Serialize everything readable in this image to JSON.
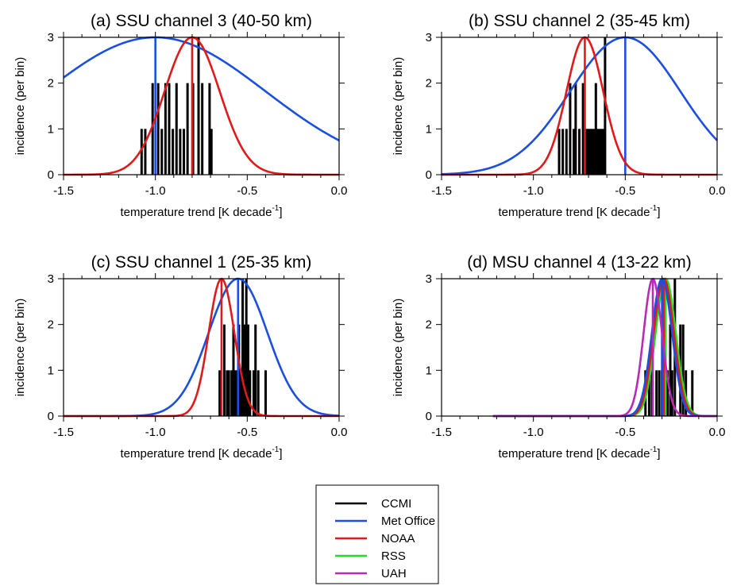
{
  "figure": {
    "legend_entries": [
      {
        "label": "CCMI",
        "color": "#000000"
      },
      {
        "label": "Met Office",
        "color": "#1a4fe0"
      },
      {
        "label": "NOAA",
        "color": "#e01a1a"
      },
      {
        "label": "RSS",
        "color": "#22dd22"
      },
      {
        "label": "UAH",
        "color": "#b82bb8"
      }
    ]
  },
  "chart_data": [
    {
      "type": "bar",
      "title": "(a) SSU channel 3 (40-50 km)",
      "xlabel": "temperature trend [K decade",
      "xlabel_sup": "-1",
      "xlabel_end": "]",
      "ylabel": "incidence (per bin)",
      "xlim": [
        -1.5,
        0.0
      ],
      "ylim": [
        0,
        3
      ],
      "xticks": [
        "-1.5",
        "-1.0",
        "-0.5",
        "0.0"
      ],
      "yticks": [
        "0",
        "1",
        "2",
        "3"
      ],
      "histogram": {
        "series": "CCMI",
        "color": "#000000",
        "bins": [
          {
            "x": -1.075,
            "count": 1
          },
          {
            "x": -1.055,
            "count": 1
          },
          {
            "x": -1.015,
            "count": 2
          },
          {
            "x": -0.985,
            "count": 2
          },
          {
            "x": -0.965,
            "count": 1
          },
          {
            "x": -0.945,
            "count": 2
          },
          {
            "x": -0.925,
            "count": 2
          },
          {
            "x": -0.905,
            "count": 1
          },
          {
            "x": -0.885,
            "count": 2
          },
          {
            "x": -0.865,
            "count": 1
          },
          {
            "x": -0.845,
            "count": 1
          },
          {
            "x": -0.825,
            "count": 2
          },
          {
            "x": -0.795,
            "count": 2
          },
          {
            "x": -0.765,
            "count": 3
          },
          {
            "x": -0.745,
            "count": 2
          },
          {
            "x": -0.705,
            "count": 2
          },
          {
            "x": -0.695,
            "count": 1
          }
        ]
      },
      "series": [
        {
          "name": "Met Office",
          "color": "#1a4fe0",
          "mean": -1.0,
          "sd": 0.6,
          "peak": 3,
          "x_start": -1.5
        },
        {
          "name": "NOAA",
          "color": "#e01a1a",
          "mean": -0.8,
          "sd": 0.15,
          "peak": 3,
          "x_start": -1.5
        }
      ]
    },
    {
      "type": "bar",
      "title": "(b) SSU channel 2 (35-45 km)",
      "xlabel": "temperature trend [K decade",
      "xlabel_sup": "-1",
      "xlabel_end": "]",
      "ylabel": "incidence (per bin)",
      "xlim": [
        -1.5,
        0.0
      ],
      "ylim": [
        0,
        3
      ],
      "xticks": [
        "-1.5",
        "-1.0",
        "-0.5",
        "0.0"
      ],
      "yticks": [
        "0",
        "1",
        "2",
        "3"
      ],
      "histogram": {
        "series": "CCMI",
        "color": "#000000",
        "bins": [
          {
            "x": -0.86,
            "count": 1
          },
          {
            "x": -0.84,
            "count": 1
          },
          {
            "x": -0.82,
            "count": 1
          },
          {
            "x": -0.8,
            "count": 2
          },
          {
            "x": -0.78,
            "count": 1
          },
          {
            "x": -0.77,
            "count": 2
          },
          {
            "x": -0.75,
            "count": 1
          },
          {
            "x": -0.73,
            "count": 2
          },
          {
            "x": -0.71,
            "count": 1
          },
          {
            "x": -0.7,
            "count": 1
          },
          {
            "x": -0.69,
            "count": 1
          },
          {
            "x": -0.68,
            "count": 1
          },
          {
            "x": -0.67,
            "count": 1
          },
          {
            "x": -0.66,
            "count": 2
          },
          {
            "x": -0.65,
            "count": 1
          },
          {
            "x": -0.64,
            "count": 1
          },
          {
            "x": -0.63,
            "count": 1
          },
          {
            "x": -0.62,
            "count": 1
          },
          {
            "x": -0.61,
            "count": 3
          }
        ]
      },
      "series": [
        {
          "name": "Met Office",
          "color": "#1a4fe0",
          "mean": -0.5,
          "sd": 0.3,
          "peak": 3,
          "x_start": -1.5
        },
        {
          "name": "NOAA",
          "color": "#e01a1a",
          "mean": -0.72,
          "sd": 0.1,
          "peak": 3,
          "x_start": -1.5
        }
      ]
    },
    {
      "type": "bar",
      "title": "(c) SSU channel 1 (25-35 km)",
      "xlabel": "temperature trend [K decade",
      "xlabel_sup": "-1",
      "xlabel_end": "]",
      "ylabel": "incidence (per bin)",
      "xlim": [
        -1.5,
        0.0
      ],
      "ylim": [
        0,
        3
      ],
      "xticks": [
        "-1.5",
        "-1.0",
        "-0.5",
        "0.0"
      ],
      "yticks": [
        "0",
        "1",
        "2",
        "3"
      ],
      "histogram": {
        "series": "CCMI",
        "color": "#000000",
        "bins": [
          {
            "x": -0.65,
            "count": 1
          },
          {
            "x": -0.625,
            "count": 2
          },
          {
            "x": -0.61,
            "count": 1
          },
          {
            "x": -0.6,
            "count": 1
          },
          {
            "x": -0.585,
            "count": 1
          },
          {
            "x": -0.575,
            "count": 2
          },
          {
            "x": -0.565,
            "count": 1
          },
          {
            "x": -0.555,
            "count": 1
          },
          {
            "x": -0.545,
            "count": 2
          },
          {
            "x": -0.535,
            "count": 1
          },
          {
            "x": -0.525,
            "count": 3
          },
          {
            "x": -0.515,
            "count": 2
          },
          {
            "x": -0.505,
            "count": 3
          },
          {
            "x": -0.495,
            "count": 2
          },
          {
            "x": -0.485,
            "count": 1
          },
          {
            "x": -0.465,
            "count": 1
          },
          {
            "x": -0.455,
            "count": 2
          },
          {
            "x": -0.44,
            "count": 1
          },
          {
            "x": -0.4,
            "count": 1
          }
        ]
      },
      "series": [
        {
          "name": "Met Office",
          "color": "#1a4fe0",
          "mean": -0.55,
          "sd": 0.16,
          "peak": 3,
          "x_start": -1.5
        },
        {
          "name": "NOAA",
          "color": "#e01a1a",
          "mean": -0.64,
          "sd": 0.07,
          "peak": 3,
          "x_start": -1.5
        }
      ]
    },
    {
      "type": "bar",
      "title": "(d) MSU channel 4 (13-22 km)",
      "xlabel": "temperature trend [K decade",
      "xlabel_sup": "-1",
      "xlabel_end": "]",
      "ylabel": "incidence (per bin)",
      "xlim": [
        -1.5,
        0.0
      ],
      "ylim": [
        0,
        3
      ],
      "xticks": [
        "-1.5",
        "-1.0",
        "-0.5",
        "0.0"
      ],
      "yticks": [
        "0",
        "1",
        "2",
        "3"
      ],
      "histogram": {
        "series": "CCMI",
        "color": "#000000",
        "bins": [
          {
            "x": -0.39,
            "count": 1
          },
          {
            "x": -0.37,
            "count": 1
          },
          {
            "x": -0.355,
            "count": 1
          },
          {
            "x": -0.33,
            "count": 1
          },
          {
            "x": -0.315,
            "count": 1
          },
          {
            "x": -0.3,
            "count": 1
          },
          {
            "x": -0.285,
            "count": 1
          },
          {
            "x": -0.27,
            "count": 1
          },
          {
            "x": -0.255,
            "count": 2
          },
          {
            "x": -0.245,
            "count": 1
          },
          {
            "x": -0.23,
            "count": 3
          },
          {
            "x": -0.2,
            "count": 2
          },
          {
            "x": -0.185,
            "count": 2
          },
          {
            "x": -0.17,
            "count": 1
          },
          {
            "x": -0.135,
            "count": 1
          }
        ]
      },
      "series": [
        {
          "name": "RSS",
          "color": "#22dd22",
          "mean": -0.28,
          "sd": 0.055,
          "peak": 3,
          "x_start": -1.22
        },
        {
          "name": "NOAA",
          "color": "#e01a1a",
          "mean": -0.29,
          "sd": 0.055,
          "peak": 3,
          "x_start": -1.22
        },
        {
          "name": "Met Office",
          "color": "#1a4fe0",
          "mean": -0.3,
          "sd": 0.055,
          "peak": 3,
          "x_start": -1.22
        },
        {
          "name": "UAH",
          "color": "#b82bb8",
          "mean": -0.35,
          "sd": 0.05,
          "peak": 3,
          "x_start": -1.22
        }
      ]
    }
  ]
}
